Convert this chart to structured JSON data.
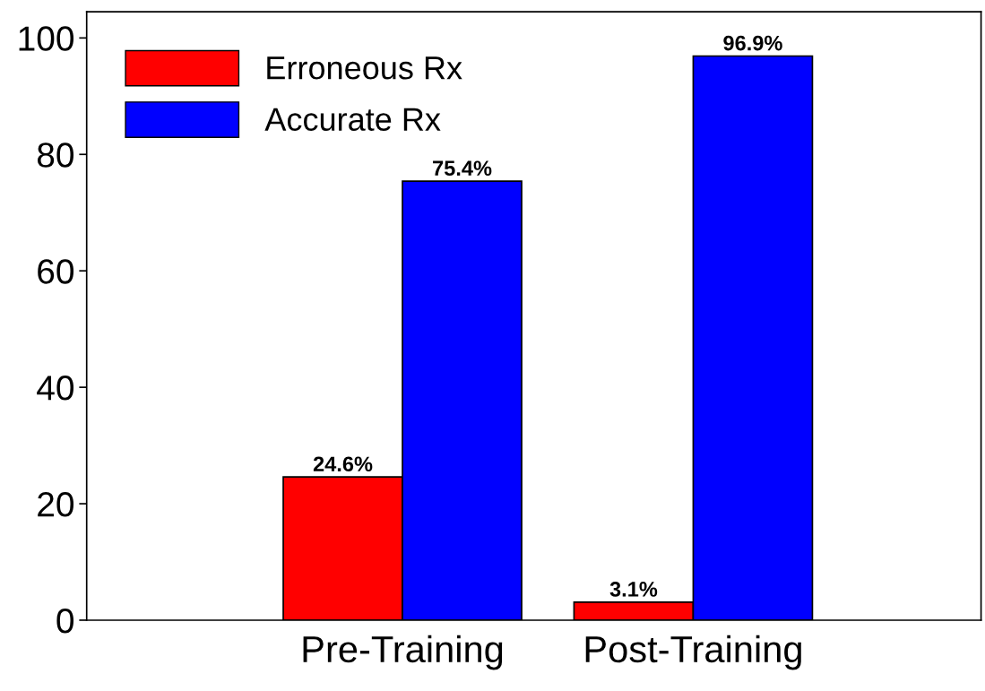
{
  "chart_data": {
    "type": "bar",
    "categories": [
      "Pre-Training",
      "Post-Training"
    ],
    "series": [
      {
        "name": "Erroneous Rx",
        "color": "#ff0000",
        "values": [
          24.6,
          3.1
        ],
        "value_labels": [
          "24.6%",
          "3.1%"
        ]
      },
      {
        "name": "Accurate Rx",
        "color": "#0000ff",
        "values": [
          75.4,
          96.9
        ],
        "value_labels": [
          "75.4%",
          "96.9%"
        ]
      }
    ],
    "ylim": [
      0,
      104.5
    ],
    "yticks": [
      0,
      20,
      40,
      60,
      80,
      100
    ],
    "grid": false,
    "legend": "top left"
  }
}
